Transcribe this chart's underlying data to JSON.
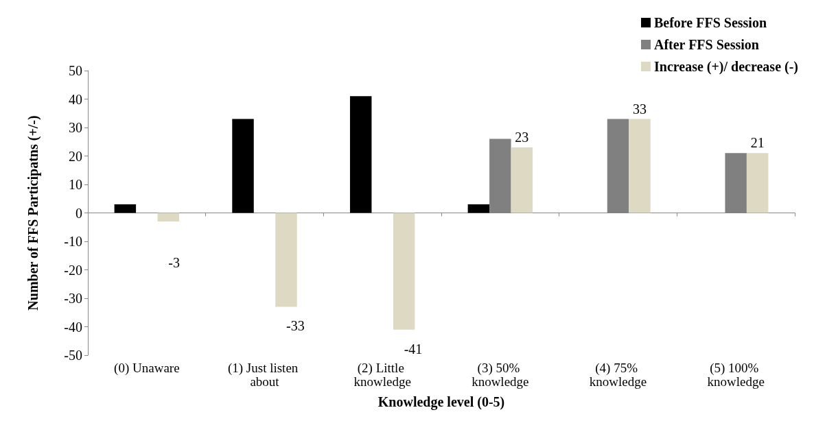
{
  "chart_data": {
    "type": "bar",
    "xlabel": "Knowledge level (0-5)",
    "ylabel": "Number of FFS Participatns (+/-)",
    "categories": [
      "(0) Unaware",
      "(1) Just listen about",
      "(2) Little knowledge",
      "(3) 50% knowledge",
      "(4) 75% knowledge",
      "(5) 100% knowledge"
    ],
    "series": [
      {
        "name": "Before FFS Session",
        "color": "#000000",
        "values": [
          3,
          33,
          41,
          3,
          null,
          null
        ]
      },
      {
        "name": "After FFS Session",
        "color": "#808080",
        "values": [
          null,
          null,
          null,
          26,
          33,
          21
        ]
      },
      {
        "name": "Increase (+)/ decrease (-)",
        "color": "#ddd9c3",
        "values": [
          -3,
          -33,
          -41,
          23,
          33,
          21
        ],
        "value_labels": [
          "-3",
          "-33",
          "-41",
          "23",
          "33",
          "21"
        ]
      }
    ],
    "ylim": [
      -50,
      50
    ],
    "yticks": [
      -50,
      -40,
      -30,
      -20,
      -10,
      0,
      10,
      20,
      30,
      40,
      50
    ],
    "legend": "top right"
  }
}
